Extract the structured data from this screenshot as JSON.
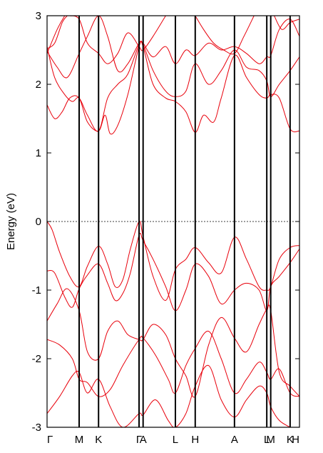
{
  "chart_data": {
    "type": "line",
    "title": "",
    "ylabel": "Energy (eV)",
    "xlabel": "",
    "ylim": [
      -3,
      3
    ],
    "yticks": [
      {
        "value": -3,
        "label": "-3"
      },
      {
        "value": -2,
        "label": "-2"
      },
      {
        "value": -1,
        "label": "-1"
      },
      {
        "value": 0,
        "label": "0"
      },
      {
        "value": 1,
        "label": "1"
      },
      {
        "value": 2,
        "label": "2"
      },
      {
        "value": 3,
        "label": "3"
      }
    ],
    "xlim": [
      0,
      1
    ],
    "kpoints": [
      {
        "label": "Γ",
        "x": 0.0
      },
      {
        "label": "M",
        "x": 0.1271
      },
      {
        "label": "K",
        "x": 0.204
      },
      {
        "label": "Γ",
        "x": 0.3645
      },
      {
        "label": "A",
        "x": 0.3805
      },
      {
        "label": "L",
        "x": 0.5084
      },
      {
        "label": "H",
        "x": 0.587
      },
      {
        "label": "A",
        "x": 0.7425
      },
      {
        "label": "L",
        "x": 0.8705
      },
      {
        "label": "M",
        "x": 0.8861
      },
      {
        "label": "K",
        "x": 0.9629
      },
      {
        "label": "H",
        "x": 1.0
      }
    ],
    "fermi_level": 0,
    "series_color": "#e8000b",
    "bands": [
      {
        "values": [
          [
            0.0,
            0.0
          ],
          [
            0.02,
            -0.12
          ],
          [
            0.05,
            -0.45
          ],
          [
            0.09,
            -0.8
          ],
          [
            0.1271,
            -0.95
          ],
          [
            0.16,
            -0.65
          ],
          [
            0.204,
            -0.36
          ],
          [
            0.24,
            -0.62
          ],
          [
            0.27,
            -0.95
          ],
          [
            0.3,
            -0.85
          ],
          [
            0.33,
            -0.4
          ],
          [
            0.3645,
            0.0
          ],
          [
            0.3805,
            -0.22
          ],
          [
            0.42,
            -0.8
          ],
          [
            0.47,
            -1.15
          ],
          [
            0.5084,
            -0.7
          ],
          [
            0.55,
            -0.55
          ],
          [
            0.587,
            -0.38
          ],
          [
            0.64,
            -0.6
          ],
          [
            0.69,
            -0.75
          ],
          [
            0.7425,
            -0.23
          ],
          [
            0.79,
            -0.55
          ],
          [
            0.84,
            -0.95
          ],
          [
            0.8705,
            -1.0
          ],
          [
            0.8861,
            -0.95
          ],
          [
            0.92,
            -0.55
          ],
          [
            0.9629,
            -0.38
          ],
          [
            1.0,
            -0.35
          ]
        ]
      },
      {
        "values": [
          [
            0.0,
            -0.72
          ],
          [
            0.03,
            -0.75
          ],
          [
            0.07,
            -1.1
          ],
          [
            0.1,
            -1.25
          ],
          [
            0.1271,
            -0.98
          ],
          [
            0.16,
            -0.78
          ],
          [
            0.204,
            -0.62
          ],
          [
            0.24,
            -0.9
          ],
          [
            0.27,
            -1.15
          ],
          [
            0.3,
            -1.05
          ],
          [
            0.33,
            -0.75
          ],
          [
            0.3645,
            -0.2
          ],
          [
            0.3805,
            -0.28
          ],
          [
            0.42,
            -0.55
          ],
          [
            0.47,
            -0.95
          ],
          [
            0.5084,
            -1.3
          ],
          [
            0.55,
            -1.0
          ],
          [
            0.587,
            -0.62
          ],
          [
            0.64,
            -0.8
          ],
          [
            0.69,
            -1.2
          ],
          [
            0.7425,
            -1.0
          ],
          [
            0.79,
            -0.9
          ],
          [
            0.84,
            -1.0
          ],
          [
            0.8705,
            -1.3
          ],
          [
            0.8861,
            -0.95
          ],
          [
            0.92,
            -0.8
          ],
          [
            0.9629,
            -0.6
          ],
          [
            1.0,
            -0.4
          ]
        ]
      },
      {
        "values": [
          [
            0.0,
            -1.45
          ],
          [
            0.04,
            -1.2
          ],
          [
            0.08,
            -0.98
          ],
          [
            0.1271,
            -1.3
          ],
          [
            0.16,
            -1.9
          ],
          [
            0.204,
            -2.0
          ],
          [
            0.24,
            -1.6
          ],
          [
            0.28,
            -1.45
          ],
          [
            0.32,
            -1.65
          ],
          [
            0.3645,
            -1.72
          ],
          [
            0.3805,
            -1.72
          ],
          [
            0.42,
            -1.5
          ],
          [
            0.47,
            -1.65
          ],
          [
            0.5084,
            -2.0
          ],
          [
            0.55,
            -2.25
          ],
          [
            0.587,
            -2.55
          ],
          [
            0.64,
            -1.8
          ],
          [
            0.69,
            -1.4
          ],
          [
            0.7425,
            -1.7
          ],
          [
            0.79,
            -1.9
          ],
          [
            0.84,
            -1.5
          ],
          [
            0.8705,
            -1.28
          ],
          [
            0.8861,
            -1.3
          ],
          [
            0.92,
            -2.2
          ],
          [
            0.9629,
            -2.4
          ],
          [
            1.0,
            -2.55
          ]
        ]
      },
      {
        "values": [
          [
            0.0,
            -1.72
          ],
          [
            0.05,
            -1.8
          ],
          [
            0.1,
            -2.0
          ],
          [
            0.1271,
            -2.3
          ],
          [
            0.16,
            -2.35
          ],
          [
            0.204,
            -2.55
          ],
          [
            0.25,
            -2.45
          ],
          [
            0.3,
            -2.1
          ],
          [
            0.3645,
            -1.72
          ],
          [
            0.3805,
            -1.7
          ],
          [
            0.43,
            -1.95
          ],
          [
            0.48,
            -2.3
          ],
          [
            0.5084,
            -2.5
          ],
          [
            0.55,
            -2.1
          ],
          [
            0.587,
            -1.85
          ],
          [
            0.64,
            -1.6
          ],
          [
            0.69,
            -2.0
          ],
          [
            0.7425,
            -2.5
          ],
          [
            0.79,
            -2.3
          ],
          [
            0.84,
            -2.05
          ],
          [
            0.8705,
            -2.2
          ],
          [
            0.8861,
            -2.3
          ],
          [
            0.92,
            -2.15
          ],
          [
            0.9629,
            -2.5
          ],
          [
            1.0,
            -2.55
          ]
        ]
      },
      {
        "values": [
          [
            0.0,
            -2.8
          ],
          [
            0.05,
            -2.55
          ],
          [
            0.1,
            -2.25
          ],
          [
            0.1271,
            -2.2
          ],
          [
            0.16,
            -2.5
          ],
          [
            0.204,
            -2.3
          ],
          [
            0.25,
            -2.7
          ],
          [
            0.3,
            -3.0
          ],
          [
            0.3645,
            -2.8
          ],
          [
            0.3805,
            -2.82
          ],
          [
            0.43,
            -2.6
          ],
          [
            0.48,
            -2.9
          ],
          [
            0.5084,
            -3.0
          ],
          [
            0.55,
            -2.8
          ],
          [
            0.587,
            -2.4
          ],
          [
            0.64,
            -2.1
          ],
          [
            0.69,
            -2.6
          ],
          [
            0.7425,
            -2.85
          ],
          [
            0.79,
            -2.6
          ],
          [
            0.84,
            -2.4
          ],
          [
            0.8705,
            -2.5
          ],
          [
            0.8861,
            -2.7
          ],
          [
            0.92,
            -2.9
          ],
          [
            0.9629,
            -3.0
          ]
        ]
      },
      {
        "values": [
          [
            0.0,
            1.7
          ],
          [
            0.03,
            1.5
          ],
          [
            0.06,
            1.6
          ],
          [
            0.09,
            1.8
          ],
          [
            0.1271,
            1.8
          ],
          [
            0.16,
            1.45
          ],
          [
            0.204,
            1.32
          ],
          [
            0.23,
            1.55
          ],
          [
            0.25,
            1.28
          ],
          [
            0.28,
            1.4
          ],
          [
            0.32,
            1.85
          ],
          [
            0.3645,
            2.55
          ],
          [
            0.3805,
            2.55
          ],
          [
            0.42,
            2.0
          ],
          [
            0.47,
            1.8
          ],
          [
            0.5084,
            1.75
          ],
          [
            0.55,
            1.6
          ],
          [
            0.587,
            1.3
          ],
          [
            0.62,
            1.55
          ],
          [
            0.66,
            1.45
          ],
          [
            0.69,
            1.8
          ],
          [
            0.7425,
            2.42
          ],
          [
            0.79,
            2.1
          ],
          [
            0.84,
            1.85
          ],
          [
            0.8705,
            1.8
          ],
          [
            0.8861,
            1.85
          ],
          [
            0.92,
            1.8
          ],
          [
            0.9629,
            1.35
          ],
          [
            1.0,
            1.32
          ]
        ]
      },
      {
        "values": [
          [
            0.0,
            2.55
          ],
          [
            0.03,
            2.1
          ],
          [
            0.07,
            1.85
          ],
          [
            0.1,
            1.75
          ],
          [
            0.1271,
            1.8
          ],
          [
            0.16,
            1.55
          ],
          [
            0.204,
            1.32
          ],
          [
            0.24,
            1.8
          ],
          [
            0.28,
            2.0
          ],
          [
            0.32,
            2.15
          ],
          [
            0.3645,
            2.58
          ],
          [
            0.3805,
            2.58
          ],
          [
            0.42,
            2.2
          ],
          [
            0.47,
            1.9
          ],
          [
            0.5084,
            1.82
          ],
          [
            0.55,
            1.9
          ],
          [
            0.587,
            2.3
          ],
          [
            0.64,
            2.0
          ],
          [
            0.69,
            2.2
          ],
          [
            0.7425,
            2.5
          ],
          [
            0.79,
            2.25
          ],
          [
            0.84,
            2.2
          ],
          [
            0.8705,
            2.05
          ],
          [
            0.8861,
            1.82
          ],
          [
            0.92,
            2.0
          ],
          [
            0.9629,
            2.2
          ],
          [
            1.0,
            2.4
          ]
        ]
      },
      {
        "values": [
          [
            0.0,
            2.48
          ],
          [
            0.04,
            2.25
          ],
          [
            0.08,
            2.1
          ],
          [
            0.1271,
            2.45
          ],
          [
            0.16,
            2.7
          ],
          [
            0.204,
            3.0
          ],
          [
            0.24,
            2.7
          ],
          [
            0.28,
            2.2
          ],
          [
            0.32,
            2.3
          ],
          [
            0.3645,
            2.6
          ],
          [
            0.3805,
            2.6
          ],
          [
            0.42,
            2.4
          ],
          [
            0.47,
            2.55
          ],
          [
            0.5084,
            2.3
          ],
          [
            0.55,
            2.5
          ],
          [
            0.587,
            2.42
          ],
          [
            0.64,
            2.6
          ],
          [
            0.69,
            2.5
          ],
          [
            0.7425,
            2.55
          ],
          [
            0.79,
            2.45
          ],
          [
            0.84,
            2.3
          ],
          [
            0.8705,
            2.4
          ],
          [
            0.8861,
            2.42
          ],
          [
            0.92,
            2.8
          ],
          [
            0.9629,
            2.95
          ],
          [
            1.0,
            2.7
          ]
        ]
      },
      {
        "values": [
          [
            0.0,
            2.52
          ],
          [
            0.03,
            2.6
          ],
          [
            0.06,
            2.9
          ],
          [
            0.08,
            3.0
          ]
        ]
      },
      {
        "values": [
          [
            0.0,
            2.45
          ],
          [
            0.04,
            2.8
          ],
          [
            0.07,
            3.0
          ]
        ]
      },
      {
        "values": [
          [
            0.09,
            3.0
          ],
          [
            0.1271,
            2.95
          ],
          [
            0.16,
            2.6
          ],
          [
            0.204,
            2.45
          ],
          [
            0.24,
            2.3
          ],
          [
            0.28,
            2.45
          ],
          [
            0.32,
            2.75
          ],
          [
            0.3645,
            2.55
          ],
          [
            0.3805,
            2.5
          ],
          [
            0.42,
            2.7
          ],
          [
            0.47,
            3.0
          ]
        ]
      },
      {
        "values": [
          [
            0.587,
            3.0
          ],
          [
            0.62,
            2.8
          ],
          [
            0.66,
            2.6
          ],
          [
            0.7,
            2.5
          ],
          [
            0.7425,
            2.45
          ],
          [
            0.78,
            2.7
          ],
          [
            0.82,
            3.0
          ]
        ]
      },
      {
        "values": [
          [
            0.9,
            3.0
          ],
          [
            0.93,
            2.8
          ],
          [
            0.9629,
            2.9
          ],
          [
            1.0,
            2.95
          ]
        ]
      }
    ]
  }
}
